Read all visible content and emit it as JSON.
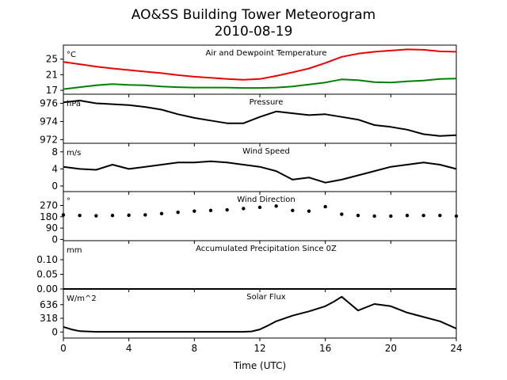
{
  "figure": {
    "title": "AO&SS Building Tower Meteorogram",
    "subtitle": "2010-08-19",
    "xlabel": "Time (UTC)"
  },
  "chart_data": [
    {
      "type": "line",
      "title": "Air and Dewpoint Temperature",
      "unit": "°C",
      "xlim": [
        0,
        24
      ],
      "ylim": [
        16,
        28.6
      ],
      "xticks": [
        "0",
        "4",
        "8",
        "12",
        "16",
        "20",
        "24"
      ],
      "yticks": [
        17,
        21,
        25
      ],
      "ytick_labels": [
        "17",
        "21",
        "25"
      ],
      "x": [
        0,
        1,
        2,
        3,
        4,
        5,
        6,
        7,
        8,
        9,
        10,
        11,
        12,
        13,
        14,
        15,
        16,
        17,
        18,
        19,
        20,
        21,
        22,
        23,
        24
      ],
      "series": [
        {
          "name": "Air",
          "color": "#ee0000",
          "values": [
            24.3,
            23.7,
            23.1,
            22.6,
            22.2,
            21.8,
            21.4,
            20.9,
            20.5,
            20.2,
            19.9,
            19.7,
            19.9,
            20.7,
            21.6,
            22.6,
            24.0,
            25.6,
            26.4,
            26.9,
            27.2,
            27.5,
            27.4,
            27.0,
            26.9
          ]
        },
        {
          "name": "Dewpoint",
          "color": "#008000",
          "values": [
            17.3,
            17.8,
            18.3,
            18.6,
            18.4,
            18.3,
            18.0,
            17.8,
            17.7,
            17.7,
            17.7,
            17.6,
            17.6,
            17.7,
            18.0,
            18.5,
            19.0,
            19.8,
            19.6,
            19.1,
            19.0,
            19.3,
            19.5,
            19.9,
            20.0
          ]
        }
      ]
    },
    {
      "type": "line",
      "title": "Pressure",
      "unit": "hPa",
      "xlim": [
        0,
        24
      ],
      "ylim": [
        971.6,
        977.0
      ],
      "yticks": [
        972,
        974,
        976
      ],
      "ytick_labels": [
        "972",
        "974",
        "976"
      ],
      "x": [
        0,
        1,
        2,
        3,
        4,
        5,
        6,
        7,
        8,
        9,
        10,
        11,
        12,
        13,
        14,
        15,
        16,
        17,
        18,
        19,
        20,
        21,
        22,
        23,
        24
      ],
      "series": [
        {
          "name": "Pressure",
          "color": "#000000",
          "values": [
            976.1,
            976.3,
            976.0,
            975.9,
            975.8,
            975.6,
            975.3,
            974.8,
            974.4,
            974.1,
            973.8,
            973.8,
            974.5,
            975.1,
            974.9,
            974.7,
            974.8,
            974.5,
            974.2,
            973.6,
            973.4,
            973.1,
            972.6,
            972.4,
            972.5
          ]
        }
      ]
    },
    {
      "type": "line",
      "title": "Wind Speed",
      "unit": "m/s",
      "xlim": [
        0,
        24
      ],
      "ylim": [
        -1.3,
        10
      ],
      "yticks": [
        0,
        4,
        8
      ],
      "ytick_labels": [
        "0",
        "4",
        "8"
      ],
      "x": [
        0,
        1,
        2,
        3,
        4,
        5,
        6,
        7,
        8,
        9,
        10,
        11,
        12,
        13,
        14,
        15,
        16,
        17,
        18,
        19,
        20,
        21,
        22,
        23,
        24
      ],
      "series": [
        {
          "name": "Wind Speed",
          "color": "#000000",
          "values": [
            4.5,
            4.0,
            3.8,
            5.0,
            4.0,
            4.5,
            5.0,
            5.5,
            5.5,
            5.8,
            5.5,
            5.0,
            4.5,
            3.5,
            1.5,
            2.0,
            0.8,
            1.5,
            2.5,
            3.5,
            4.5,
            5.0,
            5.5,
            5.0,
            4.0
          ]
        }
      ]
    },
    {
      "type": "scatter",
      "title": "Wind Direction",
      "unit": "°",
      "xlim": [
        0,
        24
      ],
      "ylim": [
        -10,
        380
      ],
      "yticks": [
        0,
        90,
        180,
        270
      ],
      "ytick_labels": [
        "0",
        "90",
        "180",
        "270"
      ],
      "x": [
        0,
        1,
        2,
        3,
        4,
        5,
        6,
        7,
        8,
        9,
        10,
        11,
        12,
        13,
        14,
        15,
        16,
        17,
        18,
        19,
        20,
        21,
        22,
        23,
        24
      ],
      "series": [
        {
          "name": "Wind Direction",
          "color": "#000000",
          "values": [
            195,
            190,
            188,
            190,
            192,
            195,
            205,
            215,
            225,
            230,
            235,
            245,
            255,
            265,
            230,
            225,
            260,
            200,
            190,
            185,
            185,
            190,
            190,
            190,
            185
          ]
        }
      ]
    },
    {
      "type": "line",
      "title": "Accumulated Precipitation Since 0Z",
      "unit": "mm",
      "xlim": [
        0,
        24
      ],
      "ylim": [
        0,
        0.165
      ],
      "yticks": [
        0,
        0.05,
        0.1
      ],
      "ytick_labels": [
        "0.00",
        "0.05",
        "0.10"
      ],
      "x": [
        0,
        24
      ],
      "series": [
        {
          "name": "Precipitation",
          "color": "#000000",
          "values": [
            0,
            0
          ]
        }
      ]
    },
    {
      "type": "line",
      "title": "Solar Flux",
      "unit": "W/m^2",
      "xlim": [
        0,
        24
      ],
      "ylim": [
        -140,
        1000
      ],
      "yticks": [
        0,
        318,
        636
      ],
      "ytick_labels": [
        "0",
        "318",
        "636"
      ],
      "x": [
        0,
        0.5,
        1,
        2,
        4,
        6,
        8,
        10,
        11,
        11.5,
        12,
        12.5,
        13,
        14,
        15,
        16,
        16.5,
        17,
        18,
        19,
        20,
        21,
        22,
        23,
        24
      ],
      "series": [
        {
          "name": "Solar Flux",
          "color": "#000000",
          "values": [
            120,
            60,
            20,
            5,
            5,
            5,
            5,
            5,
            5,
            15,
            60,
            150,
            250,
            380,
            480,
            600,
            700,
            820,
            500,
            650,
            600,
            450,
            350,
            250,
            80
          ]
        }
      ]
    }
  ]
}
